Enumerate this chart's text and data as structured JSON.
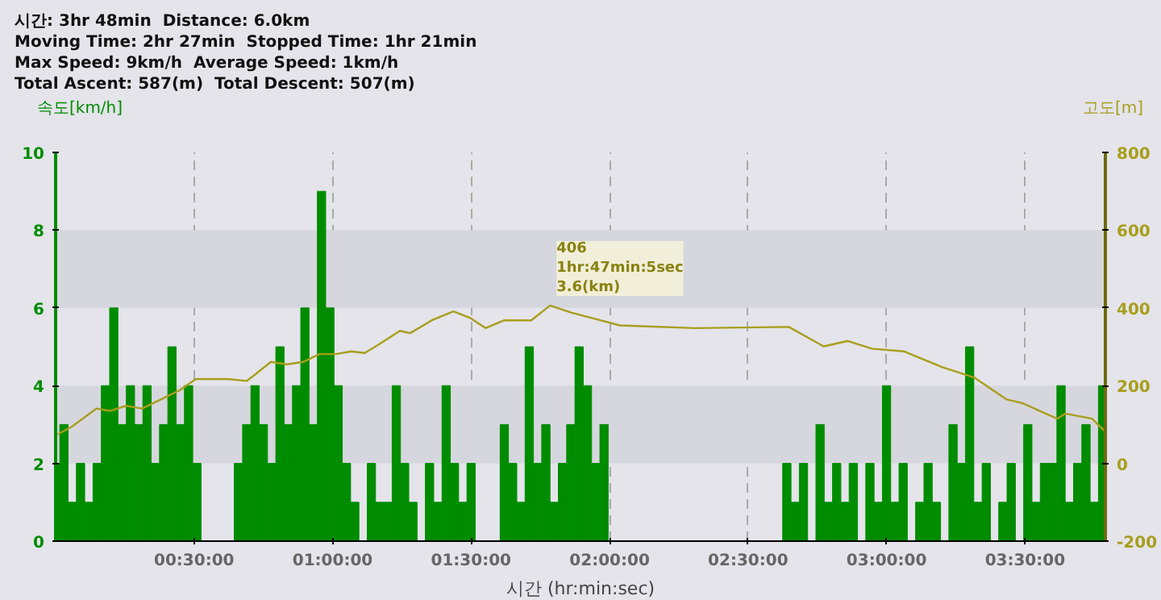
{
  "chart_data": {
    "type": "bar",
    "title": "시간: 3hr 48min  Distance: 6.0km",
    "subtitle": "Moving Time: 2hr 27min  Stopped Time: 1hr 21min\nMax Speed: 9km/h  Average Speed: 1km/h\nTotal Ascent: 587(m)  Total Descent: 507(m)",
    "xlabel": "시간 (hr:min:sec)",
    "ylabel": "속도[km/h]",
    "y2label": "고도[m]",
    "xlim": [
      0,
      3.79
    ],
    "xticks": [
      {
        "value": 0.5,
        "label": "00:30:00"
      },
      {
        "value": 1.0,
        "label": "01:00:00"
      },
      {
        "value": 1.5,
        "label": "01:30:00"
      },
      {
        "value": 2.0,
        "label": "02:00:00"
      },
      {
        "value": 2.5,
        "label": "02:30:00"
      },
      {
        "value": 3.0,
        "label": "03:00:00"
      },
      {
        "value": 3.5,
        "label": "03:30:00"
      }
    ],
    "ylim": [
      0,
      10
    ],
    "yticks": [
      0,
      2,
      4,
      6,
      8,
      10
    ],
    "y2lim": [
      -200,
      800
    ],
    "y2ticks": [
      -200,
      0,
      200,
      400,
      600,
      800
    ],
    "grid": true,
    "series": [
      {
        "color": "#008c00",
        "x": [
          0.0,
          0.03,
          0.06,
          0.09,
          0.12,
          0.15,
          0.18,
          0.21,
          0.24,
          0.27,
          0.3,
          0.33,
          0.36,
          0.39,
          0.42,
          0.45,
          0.48,
          0.51,
          0.54,
          0.57,
          0.6,
          0.63,
          0.66,
          0.69,
          0.72,
          0.75,
          0.78,
          0.81,
          0.84,
          0.87,
          0.9,
          0.93,
          0.96,
          0.99,
          1.02,
          1.05,
          1.08,
          1.11,
          1.14,
          1.17,
          1.2,
          1.23,
          1.26,
          1.29,
          1.32,
          1.35,
          1.38,
          1.41,
          1.44,
          1.47,
          1.5,
          1.53,
          1.56,
          1.59,
          1.62,
          1.65,
          1.68,
          1.71,
          1.74,
          1.77,
          1.8,
          1.83,
          1.86,
          1.89,
          1.92,
          1.95,
          1.98,
          2.01,
          2.04,
          2.07,
          2.1,
          2.13,
          2.16,
          2.19,
          2.22,
          2.25,
          2.28,
          2.31,
          2.34,
          2.37,
          2.4,
          2.43,
          2.46,
          2.49,
          2.52,
          2.55,
          2.58,
          2.61,
          2.64,
          2.67,
          2.7,
          2.73,
          2.76,
          2.79,
          2.82,
          2.85,
          2.88,
          2.91,
          2.94,
          2.97,
          3.0,
          3.03,
          3.06,
          3.09,
          3.12,
          3.15,
          3.18,
          3.21,
          3.24,
          3.27,
          3.3,
          3.33,
          3.36,
          3.39,
          3.42,
          3.45,
          3.48,
          3.51,
          3.54,
          3.57,
          3.6,
          3.63,
          3.66,
          3.69,
          3.72,
          3.75,
          3.78
        ],
        "values": [
          2,
          3,
          1,
          2,
          1,
          2,
          4,
          6,
          3,
          4,
          3,
          4,
          2,
          3,
          5,
          3,
          4,
          2,
          0,
          0,
          0,
          0,
          2,
          3,
          4,
          3,
          2,
          5,
          3,
          4,
          6,
          3,
          9,
          6,
          4,
          2,
          1,
          0,
          2,
          1,
          1,
          4,
          2,
          1,
          0,
          2,
          1,
          4,
          2,
          1,
          2,
          0,
          0,
          0,
          3,
          2,
          1,
          5,
          2,
          3,
          1,
          2,
          3,
          5,
          4,
          2,
          3,
          0,
          0,
          0,
          0,
          0,
          0,
          0,
          0,
          0,
          0,
          0,
          0,
          0,
          0,
          0,
          0,
          0,
          0,
          0,
          0,
          0,
          2,
          1,
          2,
          0,
          3,
          1,
          2,
          1,
          2,
          0,
          2,
          1,
          4,
          1,
          2,
          0,
          1,
          2,
          1,
          0,
          3,
          2,
          5,
          1,
          2,
          0,
          1,
          2,
          0,
          3,
          1,
          2,
          2,
          4,
          1,
          2,
          3,
          1,
          4
        ]
      },
      {
        "type": "line",
        "axis": "y2",
        "color": "#a89e1c",
        "x": [
          0.008,
          0.06,
          0.147,
          0.196,
          0.254,
          0.312,
          0.39,
          0.448,
          0.506,
          0.622,
          0.69,
          0.719,
          0.777,
          0.835,
          0.894,
          0.952,
          1.01,
          1.068,
          1.116,
          1.165,
          1.243,
          1.28,
          1.358,
          1.436,
          1.494,
          1.552,
          1.62,
          1.717,
          1.785,
          1.862,
          2.037,
          2.308,
          2.647,
          2.773,
          2.86,
          2.948,
          3.064,
          3.2,
          3.316,
          3.432,
          3.49,
          3.616,
          3.645,
          3.742,
          3.79
        ],
        "values": [
          75,
          95,
          141,
          135,
          148,
          141,
          168,
          188,
          217,
          217,
          212,
          228,
          261,
          255,
          261,
          281,
          281,
          288,
          284,
          305,
          341,
          335,
          368,
          391,
          375,
          348,
          368,
          368,
          406,
          388,
          355,
          348,
          351,
          301,
          315,
          295,
          288,
          248,
          221,
          165,
          155,
          115,
          128,
          115,
          81
        ]
      }
    ],
    "annotations": [
      "406\n1hr:47min:5sec\n3.6(km)"
    ]
  }
}
